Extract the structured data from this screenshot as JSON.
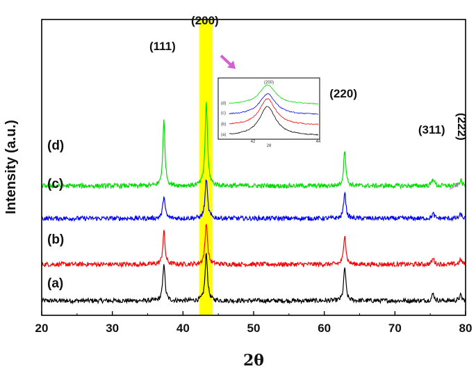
{
  "chart_data": {
    "type": "line",
    "xlabel": "2θ",
    "ylabel": "Intensity (a.u.)",
    "xlim": [
      20,
      80
    ],
    "x_ticks": [
      "20",
      "30",
      "40",
      "50",
      "60",
      "70",
      "80"
    ],
    "grid": false,
    "highlight_band": {
      "x_range": [
        42.3,
        44.2
      ],
      "color": "#ffff00"
    },
    "peaks": [
      {
        "label": "(111)",
        "x": 37.3
      },
      {
        "label": "(200)",
        "x": 43.3
      },
      {
        "label": "(220)",
        "x": 62.9
      },
      {
        "label": "(311)",
        "x": 75.4
      },
      {
        "label": "(222)",
        "x": 79.3
      }
    ],
    "series": [
      {
        "name": "(a)",
        "color": "#000000",
        "baseline": 0.0,
        "peak_heights": [
          1.0,
          1.25,
          0.88,
          0.18,
          0.14
        ]
      },
      {
        "name": "(b)",
        "color": "#ff0000",
        "baseline": 0.95,
        "peak_heights": [
          0.88,
          1.1,
          0.8,
          0.15,
          0.12
        ]
      },
      {
        "name": "(c)",
        "color": "#0000ff",
        "baseline": 2.15,
        "peak_heights": [
          0.6,
          1.05,
          0.7,
          0.12,
          0.1
        ]
      },
      {
        "name": "(d)",
        "color": "#00dd00",
        "baseline": 3.0,
        "peak_heights": [
          1.7,
          2.2,
          0.95,
          0.2,
          0.15
        ]
      }
    ],
    "inset": {
      "title": "(200)",
      "xlabel": "2θ",
      "x_ticks": [
        "42",
        "44"
      ],
      "series_labels": [
        "(d)",
        "(c)",
        "(b)",
        "(a)"
      ]
    },
    "colors": {
      "arrow": "#d65fd6",
      "band": "#ffff00"
    }
  }
}
